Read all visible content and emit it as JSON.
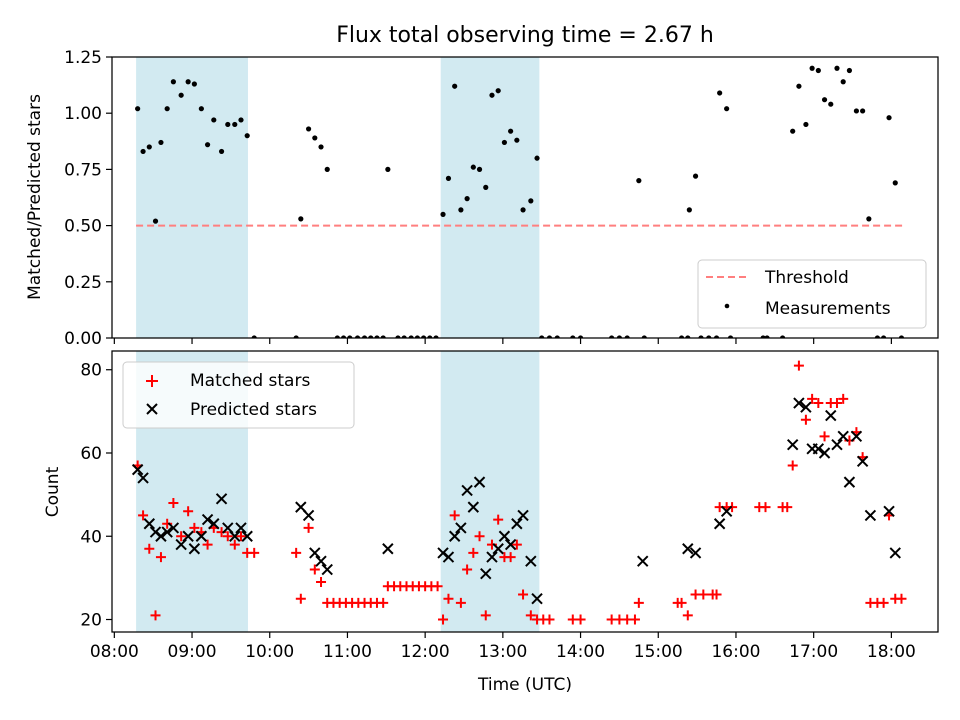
{
  "figure": {
    "title": "Flux total observing time = 2.67 h"
  },
  "chart_data": [
    {
      "type": "scatter",
      "panel": "top",
      "ylabel": "Matched/Predicted stars",
      "xlabel": "",
      "x_unit": "hours UTC",
      "xlim": [
        7.97,
        18.6
      ],
      "ylim": [
        0,
        1.25
      ],
      "y_ticks": [
        0.0,
        0.25,
        0.5,
        0.75,
        1.0,
        1.25
      ],
      "y_tick_labels": [
        "0.00",
        "0.25",
        "0.50",
        "0.75",
        "1.00",
        "1.25"
      ],
      "grid": false,
      "legend_position": "lower-right",
      "shaded_intervals": [
        [
          8.28,
          9.72
        ],
        [
          12.2,
          13.47
        ]
      ],
      "shade_color": "#add8e6",
      "threshold": {
        "name": "Threshold",
        "value": 0.5,
        "x_range": [
          8.28,
          18.15
        ],
        "color": "#ff7f7f",
        "style": "dashed"
      },
      "series": [
        {
          "name": "Measurements",
          "color": "#000000",
          "points": [
            [
              8.3,
              1.02
            ],
            [
              8.37,
              0.83
            ],
            [
              8.45,
              0.85
            ],
            [
              8.53,
              0.52
            ],
            [
              8.6,
              0.87
            ],
            [
              8.68,
              1.02
            ],
            [
              8.76,
              1.14
            ],
            [
              8.86,
              1.08
            ],
            [
              8.95,
              1.14
            ],
            [
              9.03,
              1.13
            ],
            [
              9.12,
              1.02
            ],
            [
              9.2,
              0.86
            ],
            [
              9.28,
              0.97
            ],
            [
              9.38,
              0.83
            ],
            [
              9.46,
              0.95
            ],
            [
              9.55,
              0.95
            ],
            [
              9.63,
              0.97
            ],
            [
              9.71,
              0.9
            ],
            [
              9.8,
              0.0
            ],
            [
              10.34,
              0.0
            ],
            [
              10.4,
              0.53
            ],
            [
              10.5,
              0.93
            ],
            [
              10.58,
              0.89
            ],
            [
              10.66,
              0.85
            ],
            [
              10.74,
              0.75
            ],
            [
              10.87,
              0.0
            ],
            [
              10.95,
              0.0
            ],
            [
              11.03,
              0.0
            ],
            [
              11.13,
              0.0
            ],
            [
              11.22,
              0.0
            ],
            [
              11.3,
              0.0
            ],
            [
              11.38,
              0.0
            ],
            [
              11.46,
              0.0
            ],
            [
              11.52,
              0.75
            ],
            [
              11.65,
              0.0
            ],
            [
              11.73,
              0.0
            ],
            [
              11.82,
              0.0
            ],
            [
              11.9,
              0.0
            ],
            [
              11.98,
              0.0
            ],
            [
              12.06,
              0.0
            ],
            [
              12.14,
              0.0
            ],
            [
              12.23,
              0.55
            ],
            [
              12.3,
              0.71
            ],
            [
              12.38,
              1.12
            ],
            [
              12.46,
              0.57
            ],
            [
              12.54,
              0.62
            ],
            [
              12.62,
              0.76
            ],
            [
              12.7,
              0.75
            ],
            [
              12.78,
              0.67
            ],
            [
              12.86,
              1.08
            ],
            [
              12.94,
              1.1
            ],
            [
              13.02,
              0.87
            ],
            [
              13.1,
              0.92
            ],
            [
              13.18,
              0.88
            ],
            [
              13.26,
              0.57
            ],
            [
              13.36,
              0.61
            ],
            [
              13.44,
              0.8
            ],
            [
              13.5,
              0.0
            ],
            [
              13.6,
              0.0
            ],
            [
              13.7,
              0.0
            ],
            [
              13.9,
              0.0
            ],
            [
              14.0,
              0.0
            ],
            [
              14.4,
              0.0
            ],
            [
              14.5,
              0.0
            ],
            [
              14.6,
              0.0
            ],
            [
              14.75,
              0.7
            ],
            [
              14.82,
              0.0
            ],
            [
              15.3,
              0.0
            ],
            [
              15.38,
              0.0
            ],
            [
              15.4,
              0.57
            ],
            [
              15.48,
              0.72
            ],
            [
              15.55,
              0.0
            ],
            [
              15.65,
              0.0
            ],
            [
              15.75,
              0.0
            ],
            [
              15.79,
              1.09
            ],
            [
              15.88,
              1.02
            ],
            [
              15.93,
              0.0
            ],
            [
              16.35,
              0.0
            ],
            [
              16.4,
              0.0
            ],
            [
              16.6,
              0.0
            ],
            [
              16.73,
              0.92
            ],
            [
              16.81,
              1.12
            ],
            [
              16.9,
              0.95
            ],
            [
              16.98,
              1.2
            ],
            [
              17.06,
              1.19
            ],
            [
              17.14,
              1.06
            ],
            [
              17.22,
              1.04
            ],
            [
              17.3,
              1.2
            ],
            [
              17.38,
              1.14
            ],
            [
              17.46,
              1.19
            ],
            [
              17.55,
              1.01
            ],
            [
              17.63,
              1.01
            ],
            [
              17.71,
              0.53
            ],
            [
              17.82,
              0.0
            ],
            [
              17.9,
              0.0
            ],
            [
              17.97,
              0.98
            ],
            [
              18.05,
              0.69
            ],
            [
              18.13,
              0.0
            ]
          ]
        }
      ]
    },
    {
      "type": "scatter",
      "panel": "bottom",
      "xlabel": "Time (UTC)",
      "ylabel": "Count",
      "x_unit": "hours UTC",
      "xlim": [
        7.97,
        18.6
      ],
      "ylim": [
        17,
        84.5
      ],
      "y_ticks": [
        20,
        40,
        60,
        80
      ],
      "y_tick_labels": [
        "20",
        "40",
        "60",
        "80"
      ],
      "x_ticks": [
        8,
        9,
        10,
        11,
        12,
        13,
        14,
        15,
        16,
        17,
        18
      ],
      "x_tick_labels": [
        "08:00",
        "09:00",
        "10:00",
        "11:00",
        "12:00",
        "13:00",
        "14:00",
        "15:00",
        "16:00",
        "17:00",
        "18:00"
      ],
      "grid": false,
      "legend_position": "upper-left",
      "shaded_intervals": [
        [
          8.28,
          9.72
        ],
        [
          12.2,
          13.47
        ]
      ],
      "shade_color": "#add8e6",
      "series": [
        {
          "name": "Matched stars",
          "marker": "plus",
          "color": "#ff0000",
          "points": [
            [
              8.3,
              57
            ],
            [
              8.37,
              45
            ],
            [
              8.45,
              37
            ],
            [
              8.53,
              21
            ],
            [
              8.6,
              35
            ],
            [
              8.68,
              43
            ],
            [
              8.76,
              48
            ],
            [
              8.86,
              40
            ],
            [
              8.95,
              46
            ],
            [
              9.03,
              42
            ],
            [
              9.12,
              41
            ],
            [
              9.2,
              38
            ],
            [
              9.28,
              42
            ],
            [
              9.38,
              41
            ],
            [
              9.46,
              40
            ],
            [
              9.55,
              38
            ],
            [
              9.63,
              40
            ],
            [
              9.71,
              36
            ],
            [
              9.8,
              36
            ],
            [
              10.34,
              36
            ],
            [
              10.4,
              25
            ],
            [
              10.5,
              42
            ],
            [
              10.58,
              32
            ],
            [
              10.66,
              29
            ],
            [
              10.74,
              24
            ],
            [
              10.82,
              24
            ],
            [
              10.9,
              24
            ],
            [
              10.98,
              24
            ],
            [
              11.06,
              24
            ],
            [
              11.14,
              24
            ],
            [
              11.22,
              24
            ],
            [
              11.3,
              24
            ],
            [
              11.38,
              24
            ],
            [
              11.46,
              24
            ],
            [
              11.52,
              28
            ],
            [
              11.6,
              28
            ],
            [
              11.68,
              28
            ],
            [
              11.76,
              28
            ],
            [
              11.84,
              28
            ],
            [
              11.92,
              28
            ],
            [
              12.0,
              28
            ],
            [
              12.08,
              28
            ],
            [
              12.16,
              28
            ],
            [
              12.23,
              20
            ],
            [
              12.3,
              25
            ],
            [
              12.38,
              45
            ],
            [
              12.46,
              24
            ],
            [
              12.54,
              32
            ],
            [
              12.62,
              36
            ],
            [
              12.7,
              40
            ],
            [
              12.78,
              21
            ],
            [
              12.86,
              38
            ],
            [
              12.94,
              44
            ],
            [
              13.02,
              35
            ],
            [
              13.1,
              35
            ],
            [
              13.18,
              38
            ],
            [
              13.26,
              26
            ],
            [
              13.36,
              21
            ],
            [
              13.44,
              20
            ],
            [
              13.52,
              20
            ],
            [
              13.6,
              20
            ],
            [
              13.9,
              20
            ],
            [
              14.0,
              20
            ],
            [
              14.4,
              20
            ],
            [
              14.5,
              20
            ],
            [
              14.6,
              20
            ],
            [
              14.7,
              20
            ],
            [
              14.75,
              24
            ],
            [
              15.25,
              24
            ],
            [
              15.3,
              24
            ],
            [
              15.38,
              21
            ],
            [
              15.48,
              26
            ],
            [
              15.58,
              26
            ],
            [
              15.7,
              26
            ],
            [
              15.75,
              26
            ],
            [
              15.79,
              47
            ],
            [
              15.88,
              47
            ],
            [
              15.95,
              47
            ],
            [
              16.3,
              47
            ],
            [
              16.38,
              47
            ],
            [
              16.6,
              47
            ],
            [
              16.66,
              47
            ],
            [
              16.73,
              57
            ],
            [
              16.81,
              81
            ],
            [
              16.9,
              68
            ],
            [
              16.98,
              73
            ],
            [
              17.06,
              72
            ],
            [
              17.14,
              64
            ],
            [
              17.22,
              72
            ],
            [
              17.3,
              72
            ],
            [
              17.38,
              73
            ],
            [
              17.46,
              63
            ],
            [
              17.55,
              65
            ],
            [
              17.63,
              59
            ],
            [
              17.73,
              24
            ],
            [
              17.82,
              24
            ],
            [
              17.9,
              24
            ],
            [
              17.97,
              45
            ],
            [
              18.05,
              25
            ],
            [
              18.13,
              25
            ]
          ]
        },
        {
          "name": "Predicted stars",
          "marker": "x",
          "color": "#000000",
          "points": [
            [
              8.3,
              56
            ],
            [
              8.37,
              54
            ],
            [
              8.45,
              43
            ],
            [
              8.53,
              41
            ],
            [
              8.6,
              40
            ],
            [
              8.68,
              41
            ],
            [
              8.76,
              42
            ],
            [
              8.86,
              38
            ],
            [
              8.95,
              40
            ],
            [
              9.03,
              37
            ],
            [
              9.12,
              40
            ],
            [
              9.2,
              44
            ],
            [
              9.28,
              43
            ],
            [
              9.38,
              49
            ],
            [
              9.46,
              42
            ],
            [
              9.55,
              40
            ],
            [
              9.63,
              42
            ],
            [
              9.71,
              40
            ],
            [
              10.4,
              47
            ],
            [
              10.5,
              45
            ],
            [
              10.58,
              36
            ],
            [
              10.66,
              34
            ],
            [
              10.74,
              32
            ],
            [
              11.52,
              37
            ],
            [
              12.23,
              36
            ],
            [
              12.3,
              35
            ],
            [
              12.38,
              40
            ],
            [
              12.46,
              42
            ],
            [
              12.54,
              51
            ],
            [
              12.62,
              47
            ],
            [
              12.7,
              53
            ],
            [
              12.78,
              31
            ],
            [
              12.86,
              35
            ],
            [
              12.94,
              37
            ],
            [
              13.02,
              40
            ],
            [
              13.1,
              38
            ],
            [
              13.18,
              43
            ],
            [
              13.26,
              45
            ],
            [
              13.36,
              34
            ],
            [
              13.44,
              25
            ],
            [
              14.8,
              34
            ],
            [
              15.38,
              37
            ],
            [
              15.48,
              36
            ],
            [
              15.79,
              43
            ],
            [
              15.88,
              46
            ],
            [
              16.73,
              62
            ],
            [
              16.81,
              72
            ],
            [
              16.9,
              71
            ],
            [
              16.98,
              61
            ],
            [
              17.06,
              61
            ],
            [
              17.14,
              60
            ],
            [
              17.22,
              69
            ],
            [
              17.3,
              62
            ],
            [
              17.38,
              64
            ],
            [
              17.46,
              53
            ],
            [
              17.55,
              64
            ],
            [
              17.63,
              58
            ],
            [
              17.73,
              45
            ],
            [
              17.97,
              46
            ],
            [
              18.05,
              36
            ]
          ]
        }
      ]
    }
  ]
}
